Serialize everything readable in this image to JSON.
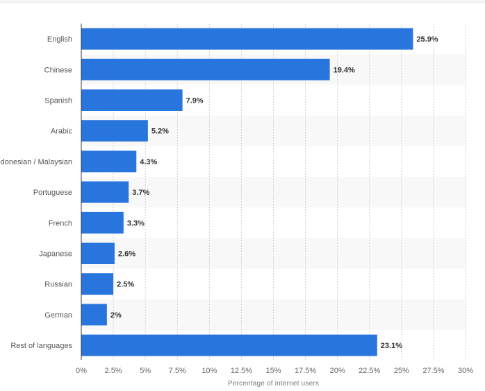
{
  "chart_data": {
    "type": "bar",
    "orientation": "horizontal",
    "categories": [
      "English",
      "Chinese",
      "Spanish",
      "Arabic",
      "Indonesian / Malaysian",
      "Portuguese",
      "French",
      "Japanese",
      "Russian",
      "German",
      "Rest of languages"
    ],
    "values": [
      25.9,
      19.4,
      7.9,
      5.2,
      4.3,
      3.7,
      3.3,
      2.6,
      2.5,
      2,
      23.1
    ],
    "value_labels": [
      "25.9%",
      "19.4%",
      "7.9%",
      "5.2%",
      "4.3%",
      "3.7%",
      "3.3%",
      "2.6%",
      "2.5%",
      "2%",
      "23.1%"
    ],
    "xlabel": "Percentage of internet users",
    "ylabel": "",
    "title": "",
    "xlim": [
      0,
      30
    ],
    "xticks": [
      0,
      2.5,
      5,
      7.5,
      10,
      12.5,
      15,
      17.5,
      20,
      22.5,
      25,
      27.5,
      30
    ],
    "xtick_labels": [
      "0%",
      "2.5%",
      "5%",
      "7.5%",
      "10%",
      "12.5%",
      "15%",
      "17.5%",
      "20%",
      "22.5%",
      "25%",
      "27.5%",
      "30%"
    ],
    "grid": "vertical dashed",
    "bar_color": "#2875dd",
    "alternate_row_color": "#f8f8f8"
  }
}
